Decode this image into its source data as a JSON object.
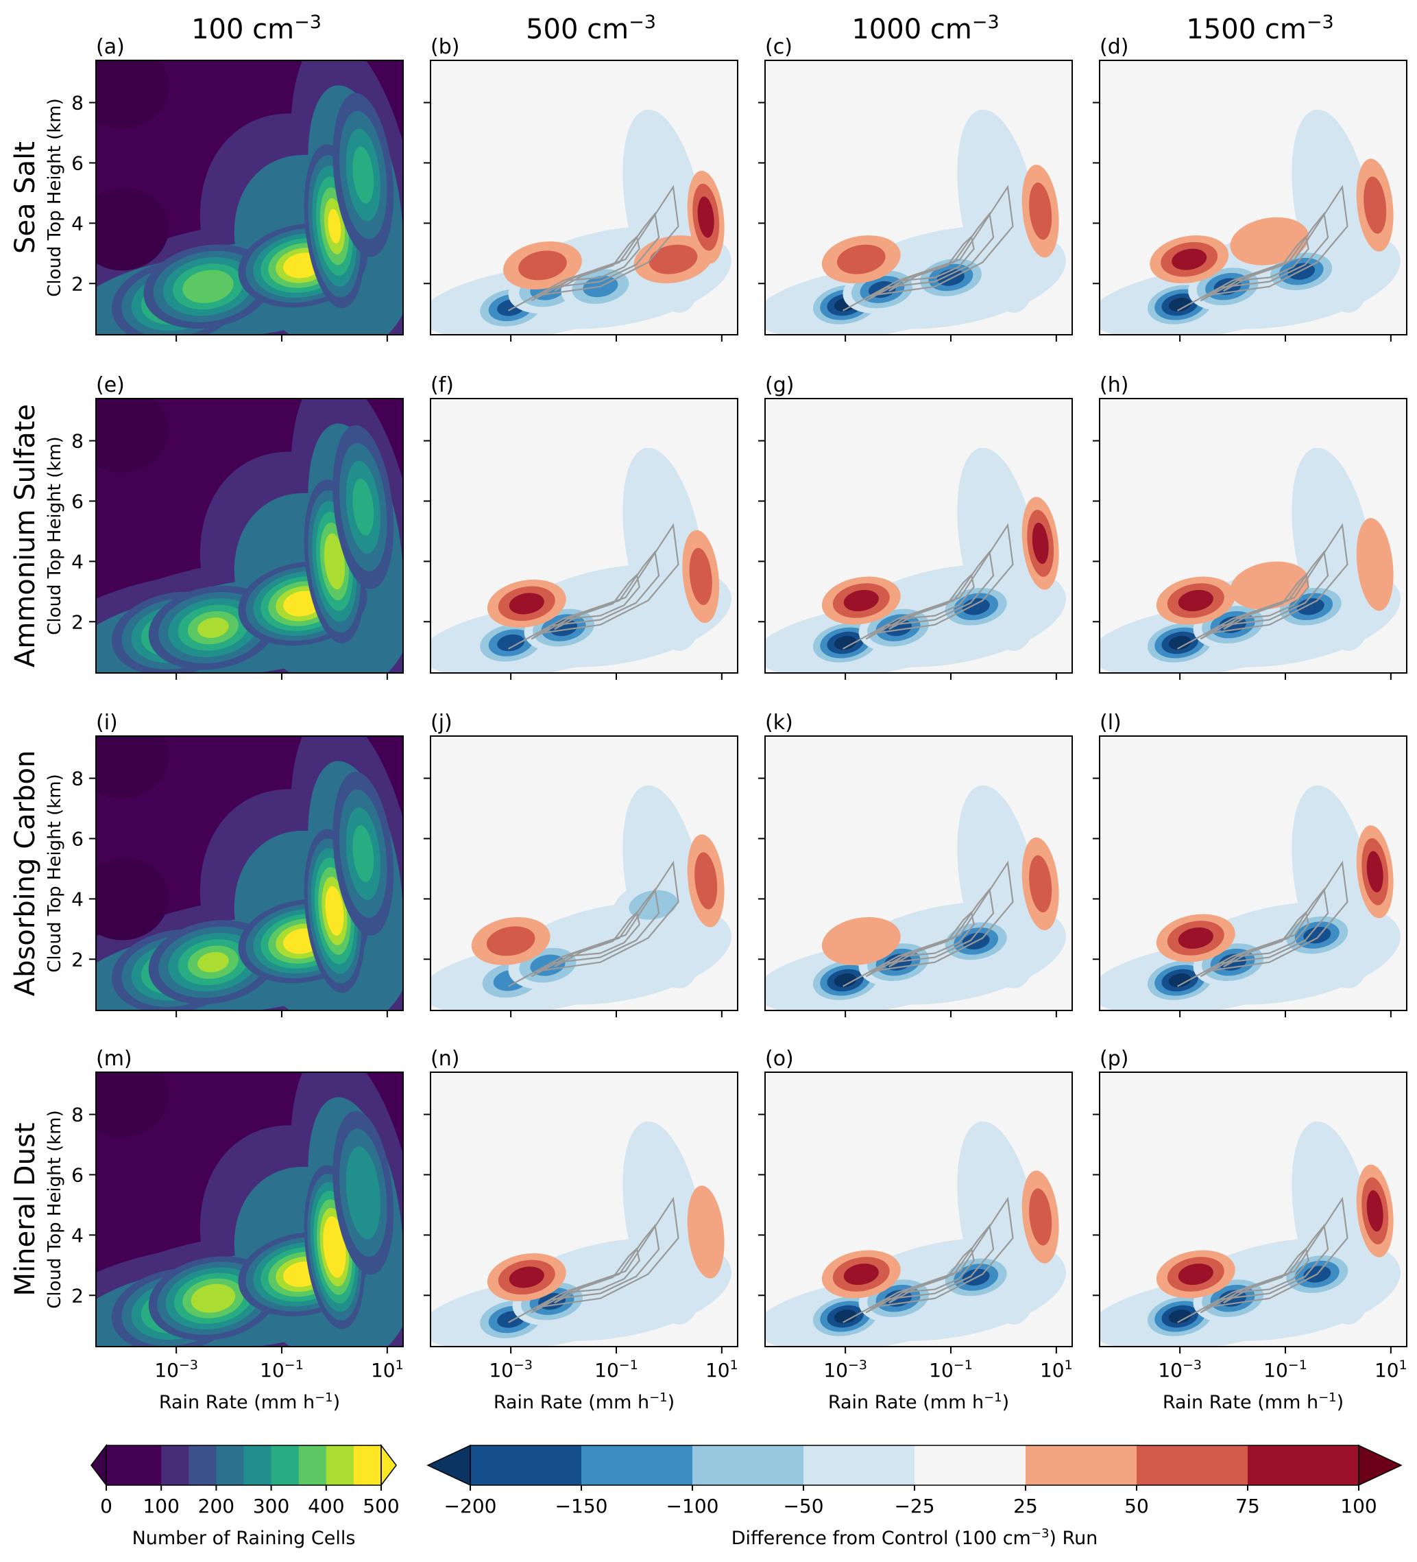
{
  "figure": {
    "column_titles": [
      {
        "base": "100 cm",
        "sup": "−3"
      },
      {
        "base": "500 cm",
        "sup": "−3"
      },
      {
        "base": "1000 cm",
        "sup": "−3"
      },
      {
        "base": "1500 cm",
        "sup": "−3"
      }
    ],
    "row_titles": [
      "Sea Salt",
      "Ammonium Sulfate",
      "Absorbing Carbon",
      "Mineral Dust"
    ],
    "panel_labels": [
      "(a)",
      "(b)",
      "(c)",
      "(d)",
      "(e)",
      "(f)",
      "(g)",
      "(h)",
      "(i)",
      "(j)",
      "(k)",
      "(l)",
      "(m)",
      "(n)",
      "(o)",
      "(p)"
    ],
    "ylabel": "Cloud Top Height (km)",
    "xlabel": {
      "base": "Rain Rate (mm h",
      "sup": "−1",
      "tail": ")"
    },
    "xtick_labels": [
      {
        "base": "10",
        "sup": "−3"
      },
      {
        "base": "10",
        "sup": "−1"
      },
      {
        "base": "10",
        "sup": "1"
      }
    ],
    "ytick_labels": [
      "2",
      "4",
      "6",
      "8"
    ],
    "colorbar_count": {
      "label": "Number of Raining Cells",
      "ticks": [
        "0",
        "100",
        "200",
        "300",
        "400",
        "500"
      ],
      "levels": [
        0,
        50,
        100,
        150,
        200,
        250,
        300,
        350,
        400,
        450,
        500
      ],
      "colors": [
        "#440154",
        "#472c7a",
        "#3b518b",
        "#2c718e",
        "#21908d",
        "#27ad81",
        "#5cc863",
        "#aadc32",
        "#fde725"
      ]
    },
    "colorbar_diff": {
      "label": {
        "base": "Difference from Control (100 cm",
        "sup": "−3",
        "tail": ") Run"
      },
      "ticks": [
        "−200",
        "−150",
        "−100",
        "−50",
        "−25",
        "25",
        "50",
        "75",
        "100"
      ],
      "levels": [
        -200,
        -150,
        -100,
        -50,
        -25,
        25,
        50,
        75,
        100
      ],
      "colors": [
        "#154e8c",
        "#3d8cc4",
        "#98c8e0",
        "#d3e5f0",
        "#f5f5f5",
        "#f3a582",
        "#d25b4b",
        "#9a1129"
      ],
      "under_color": "#0b3463",
      "over_color": "#6b0018"
    },
    "contour_color": "#999999"
  },
  "chart_data": {
    "type": "heatmap",
    "x_scale": "log",
    "xlim": [
      3e-05,
      20
    ],
    "ylim": [
      0.3,
      9.4
    ],
    "ylabel": "Cloud Top Height (km)",
    "xlabel": "Rain Rate (mm h⁻¹)",
    "panels": [
      {
        "label": "(a)",
        "aerosol": "Sea Salt",
        "concentration": "100 cm⁻³",
        "field": "count",
        "peaks": [
          {
            "x": 0.0001,
            "y": 8.5,
            "value": -50
          },
          {
            "x": 0.0001,
            "y": 3.8,
            "value": -50
          },
          {
            "x": 0.001,
            "y": 1.4,
            "value": 330
          },
          {
            "x": 0.004,
            "y": 1.9,
            "value": 330
          },
          {
            "x": 0.25,
            "y": 2.6,
            "value": 470
          },
          {
            "x": 1.0,
            "y": 3.9,
            "value": 420
          },
          {
            "x": 3.5,
            "y": 5.6,
            "value": 250
          }
        ]
      },
      {
        "label": "(b)",
        "aerosol": "Sea Salt",
        "concentration": "500 cm⁻³",
        "field": "difference",
        "peaks": [
          {
            "x": 0.001,
            "y": 1.2,
            "value": -160
          },
          {
            "x": 0.005,
            "y": 1.8,
            "value": -150
          },
          {
            "x": 0.05,
            "y": 1.9,
            "value": -155
          },
          {
            "x": 0.8,
            "y": 4.6,
            "value": -40
          },
          {
            "x": 0.004,
            "y": 2.6,
            "value": 60
          },
          {
            "x": 1.2,
            "y": 2.8,
            "value": 55
          },
          {
            "x": 5,
            "y": 4.2,
            "value": 85
          }
        ]
      },
      {
        "label": "(c)",
        "aerosol": "Sea Salt",
        "concentration": "1000 cm⁻³",
        "field": "difference",
        "peaks": [
          {
            "x": 0.001,
            "y": 1.3,
            "value": -210
          },
          {
            "x": 0.005,
            "y": 1.8,
            "value": -190
          },
          {
            "x": 0.1,
            "y": 2.2,
            "value": -180
          },
          {
            "x": 0.8,
            "y": 4.8,
            "value": -40
          },
          {
            "x": 0.002,
            "y": 2.8,
            "value": 55
          },
          {
            "x": 5,
            "y": 4.4,
            "value": 70
          }
        ]
      },
      {
        "label": "(d)",
        "aerosol": "Sea Salt",
        "concentration": "1500 cm⁻³",
        "field": "difference",
        "peaks": [
          {
            "x": 0.001,
            "y": 1.3,
            "value": -220
          },
          {
            "x": 0.008,
            "y": 1.9,
            "value": -200
          },
          {
            "x": 0.2,
            "y": 2.4,
            "value": -190
          },
          {
            "x": 0.9,
            "y": 5.4,
            "value": -40
          },
          {
            "x": 0.0015,
            "y": 2.8,
            "value": 80
          },
          {
            "x": 0.05,
            "y": 3.4,
            "value": 35
          },
          {
            "x": 5,
            "y": 4.6,
            "value": 65
          }
        ]
      },
      {
        "label": "(e)",
        "aerosol": "Ammonium Sulfate",
        "concentration": "100 cm⁻³",
        "field": "count",
        "peaks": [
          {
            "x": 0.0001,
            "y": 8.3,
            "value": -50
          },
          {
            "x": 0.001,
            "y": 1.6,
            "value": 350
          },
          {
            "x": 0.005,
            "y": 1.8,
            "value": 370
          },
          {
            "x": 0.25,
            "y": 2.6,
            "value": 440
          },
          {
            "x": 1.0,
            "y": 4.0,
            "value": 380
          },
          {
            "x": 3.5,
            "y": 5.8,
            "value": 250
          }
        ]
      },
      {
        "label": "(f)",
        "aerosol": "Ammonium Sulfate",
        "concentration": "500 cm⁻³",
        "field": "difference",
        "peaks": [
          {
            "x": 0.001,
            "y": 1.3,
            "value": -190
          },
          {
            "x": 0.01,
            "y": 1.8,
            "value": -170
          },
          {
            "x": 0.6,
            "y": 4.8,
            "value": -40
          },
          {
            "x": 0.002,
            "y": 2.6,
            "value": 85
          },
          {
            "x": 4,
            "y": 3.5,
            "value": 55
          }
        ]
      },
      {
        "label": "(g)",
        "aerosol": "Ammonium Sulfate",
        "concentration": "1000 cm⁻³",
        "field": "difference",
        "peaks": [
          {
            "x": 0.001,
            "y": 1.3,
            "value": -215
          },
          {
            "x": 0.01,
            "y": 1.8,
            "value": -200
          },
          {
            "x": 0.3,
            "y": 2.5,
            "value": -180
          },
          {
            "x": 0.002,
            "y": 2.7,
            "value": 80
          },
          {
            "x": 5,
            "y": 4.6,
            "value": 90
          }
        ]
      },
      {
        "label": "(h)",
        "aerosol": "Ammonium Sulfate",
        "concentration": "1500 cm⁻³",
        "field": "difference",
        "peaks": [
          {
            "x": 0.001,
            "y": 1.3,
            "value": -220
          },
          {
            "x": 0.01,
            "y": 1.9,
            "value": -200
          },
          {
            "x": 0.3,
            "y": 2.5,
            "value": -190
          },
          {
            "x": 0.002,
            "y": 2.7,
            "value": 85
          },
          {
            "x": 0.05,
            "y": 3.2,
            "value": 40
          },
          {
            "x": 5,
            "y": 3.9,
            "value": 35
          }
        ]
      },
      {
        "label": "(i)",
        "aerosol": "Absorbing Carbon",
        "concentration": "100 cm⁻³",
        "field": "count",
        "peaks": [
          {
            "x": 0.0001,
            "y": 8.7,
            "value": -50
          },
          {
            "x": 0.0001,
            "y": 4.0,
            "value": -50
          },
          {
            "x": 0.001,
            "y": 1.6,
            "value": 340
          },
          {
            "x": 0.005,
            "y": 1.9,
            "value": 360
          },
          {
            "x": 0.25,
            "y": 2.6,
            "value": 470
          },
          {
            "x": 1.0,
            "y": 3.6,
            "value": 470
          },
          {
            "x": 3.5,
            "y": 5.5,
            "value": 250
          }
        ]
      },
      {
        "label": "(j)",
        "aerosol": "Absorbing Carbon",
        "concentration": "500 cm⁻³",
        "field": "difference",
        "peaks": [
          {
            "x": 0.001,
            "y": 1.3,
            "value": -150
          },
          {
            "x": 0.005,
            "y": 1.8,
            "value": -150
          },
          {
            "x": 0.5,
            "y": 3.8,
            "value": -90
          },
          {
            "x": 0.001,
            "y": 2.6,
            "value": 60
          },
          {
            "x": 5,
            "y": 4.6,
            "value": 60
          }
        ]
      },
      {
        "label": "(k)",
        "aerosol": "Absorbing Carbon",
        "concentration": "1000 cm⁻³",
        "field": "difference",
        "peaks": [
          {
            "x": 0.001,
            "y": 1.3,
            "value": -210
          },
          {
            "x": 0.01,
            "y": 1.9,
            "value": -190
          },
          {
            "x": 0.3,
            "y": 2.6,
            "value": -180
          },
          {
            "x": 0.002,
            "y": 2.6,
            "value": 45
          },
          {
            "x": 5,
            "y": 4.5,
            "value": 65
          }
        ]
      },
      {
        "label": "(l)",
        "aerosol": "Absorbing Carbon",
        "concentration": "1500 cm⁻³",
        "field": "difference",
        "peaks": [
          {
            "x": 0.001,
            "y": 1.3,
            "value": -220
          },
          {
            "x": 0.01,
            "y": 1.9,
            "value": -200
          },
          {
            "x": 0.4,
            "y": 2.8,
            "value": -200
          },
          {
            "x": 0.002,
            "y": 2.7,
            "value": 80
          },
          {
            "x": 5,
            "y": 4.9,
            "value": 90
          }
        ]
      },
      {
        "label": "(m)",
        "aerosol": "Mineral Dust",
        "concentration": "100 cm⁻³",
        "field": "count",
        "peaks": [
          {
            "x": 0.0001,
            "y": 8.6,
            "value": -50
          },
          {
            "x": 0.001,
            "y": 1.5,
            "value": 350
          },
          {
            "x": 0.005,
            "y": 1.9,
            "value": 380
          },
          {
            "x": 0.25,
            "y": 2.7,
            "value": 460
          },
          {
            "x": 1.0,
            "y": 3.6,
            "value": 480
          },
          {
            "x": 3.5,
            "y": 5.4,
            "value": 240
          }
        ]
      },
      {
        "label": "(n)",
        "aerosol": "Mineral Dust",
        "concentration": "500 cm⁻³",
        "field": "difference",
        "peaks": [
          {
            "x": 0.001,
            "y": 1.2,
            "value": -180
          },
          {
            "x": 0.006,
            "y": 1.8,
            "value": -170
          },
          {
            "x": 0.6,
            "y": 4.8,
            "value": -40
          },
          {
            "x": 0.002,
            "y": 2.6,
            "value": 80
          },
          {
            "x": 5,
            "y": 4.1,
            "value": 50
          }
        ]
      },
      {
        "label": "(o)",
        "aerosol": "Mineral Dust",
        "concentration": "1000 cm⁻³",
        "field": "difference",
        "peaks": [
          {
            "x": 0.001,
            "y": 1.3,
            "value": -210
          },
          {
            "x": 0.01,
            "y": 1.9,
            "value": -190
          },
          {
            "x": 0.3,
            "y": 2.6,
            "value": -180
          },
          {
            "x": 0.002,
            "y": 2.7,
            "value": 80
          },
          {
            "x": 5,
            "y": 4.6,
            "value": 70
          }
        ]
      },
      {
        "label": "(p)",
        "aerosol": "Mineral Dust",
        "concentration": "1500 cm⁻³",
        "field": "difference",
        "peaks": [
          {
            "x": 0.001,
            "y": 1.3,
            "value": -220
          },
          {
            "x": 0.01,
            "y": 1.9,
            "value": -200
          },
          {
            "x": 0.4,
            "y": 2.7,
            "value": -200
          },
          {
            "x": 0.002,
            "y": 2.7,
            "value": 85
          },
          {
            "x": 5,
            "y": 4.8,
            "value": 85
          }
        ]
      }
    ]
  }
}
